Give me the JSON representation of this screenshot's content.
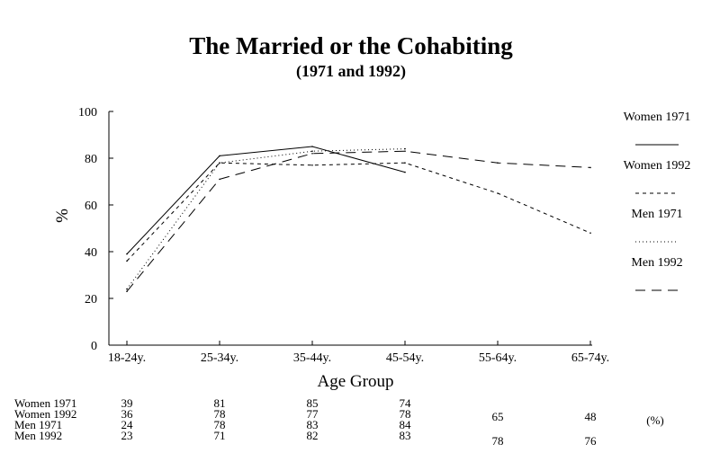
{
  "chart_data": {
    "type": "line",
    "title": "The Married or the Cohabiting",
    "subtitle": "(1971 and 1992)",
    "xlabel": "Age Group",
    "ylabel": "%",
    "categories": [
      "18-24y.",
      "25-34y.",
      "35-44y.",
      "45-54y.",
      "55-64y.",
      "65-74y."
    ],
    "ylim": [
      0,
      100
    ],
    "yticks": [
      0,
      20,
      40,
      60,
      80,
      100
    ],
    "grid": false,
    "legend_position": "right",
    "series": [
      {
        "name": "Women 1971",
        "values": [
          39,
          81,
          85,
          74,
          null,
          null
        ],
        "table_values": [
          "39",
          "81",
          "85",
          "74",
          "",
          ""
        ],
        "dash": "solid"
      },
      {
        "name": "Women 1992",
        "values": [
          36,
          78,
          77,
          78,
          65,
          48
        ],
        "table_values": [
          "36",
          "78",
          "77",
          "78",
          "65",
          "48"
        ],
        "dash": "short-dash"
      },
      {
        "name": "Men 1971",
        "values": [
          24,
          78,
          83,
          84,
          null,
          null
        ],
        "table_values": [
          "24",
          "78",
          "83",
          "84",
          "",
          ""
        ],
        "dash": "dotted"
      },
      {
        "name": "Men 1992",
        "values": [
          23,
          71,
          82,
          83,
          78,
          76
        ],
        "table_values": [
          "23",
          "71",
          "82",
          "83",
          "78",
          "76"
        ],
        "dash": "long-dash"
      }
    ],
    "table_unit": "(%)"
  }
}
